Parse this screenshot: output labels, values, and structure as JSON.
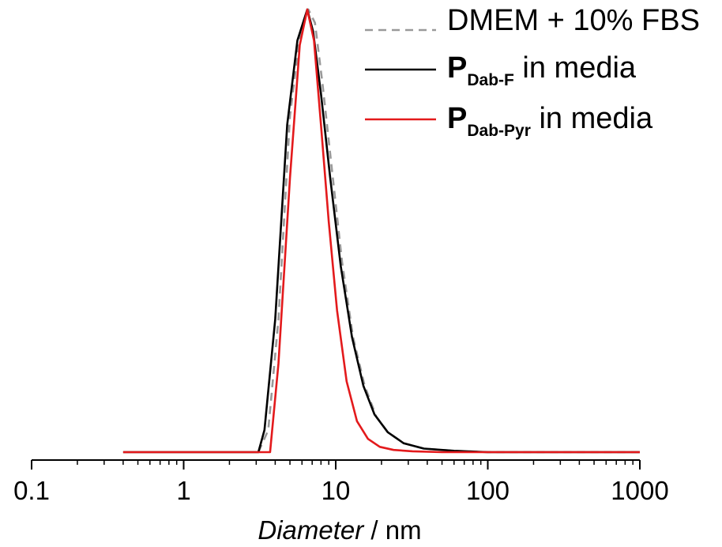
{
  "chart_data": {
    "type": "line",
    "xscale": "log",
    "xlim": [
      0.1,
      1000
    ],
    "ylim": [
      0,
      1
    ],
    "xlabel_italic": "Diameter",
    "xlabel_unit": " / nm",
    "x_ticks": [
      0.1,
      1,
      10,
      100,
      1000
    ],
    "x_tick_labels": [
      "0.1",
      "1",
      "10",
      "100",
      "1000"
    ],
    "y_axis_visible": false,
    "grid": false,
    "legend_position": "top-right",
    "series": [
      {
        "name": "DMEM + 10% FBS",
        "legend_main": "DMEM + 10% FBS",
        "legend_sub": "",
        "legend_tail": "",
        "color": "#999999",
        "style": "dashed",
        "x": [
          3.1,
          3.6,
          4.2,
          5.0,
          5.8,
          6.6,
          7.3,
          8.2,
          9.5,
          11.0,
          13.0,
          15.5,
          18.5,
          22.0,
          28.0,
          38.0,
          60.0,
          100.0,
          1000.0
        ],
        "y": [
          0.0,
          0.05,
          0.3,
          0.76,
          0.94,
          1.0,
          0.97,
          0.83,
          0.63,
          0.43,
          0.26,
          0.15,
          0.08,
          0.045,
          0.02,
          0.008,
          0.003,
          0.0,
          0.0
        ]
      },
      {
        "name": "PDab-F in media",
        "legend_main": "P",
        "legend_sub": "Dab-F",
        "legend_tail": " in media",
        "color": "#000000",
        "style": "solid",
        "x": [
          0.4,
          3.1,
          3.4,
          4.0,
          4.8,
          5.6,
          6.5,
          7.1,
          8.0,
          9.2,
          10.8,
          12.8,
          15.2,
          18.0,
          22.0,
          28.0,
          38.0,
          60.0,
          100.0,
          1000.0
        ],
        "y": [
          0.0,
          0.0,
          0.05,
          0.3,
          0.74,
          0.93,
          1.0,
          0.95,
          0.81,
          0.62,
          0.42,
          0.26,
          0.15,
          0.085,
          0.045,
          0.02,
          0.008,
          0.003,
          0.0,
          0.0
        ]
      },
      {
        "name": "PDab-Pyr in media",
        "legend_main": "P",
        "legend_sub": "Dab-Pyr",
        "legend_tail": " in media",
        "color": "#e31a1c",
        "style": "solid",
        "x": [
          0.4,
          3.7,
          4.2,
          5.0,
          5.8,
          6.5,
          7.2,
          8.0,
          9.0,
          10.2,
          11.8,
          13.8,
          16.3,
          19.5,
          24.0,
          32.0,
          50.0,
          100.0,
          1000.0
        ],
        "y": [
          0.0,
          0.0,
          0.2,
          0.62,
          0.92,
          1.0,
          0.93,
          0.74,
          0.52,
          0.32,
          0.16,
          0.07,
          0.03,
          0.012,
          0.005,
          0.002,
          0.0,
          0.0,
          0.0
        ]
      }
    ]
  }
}
